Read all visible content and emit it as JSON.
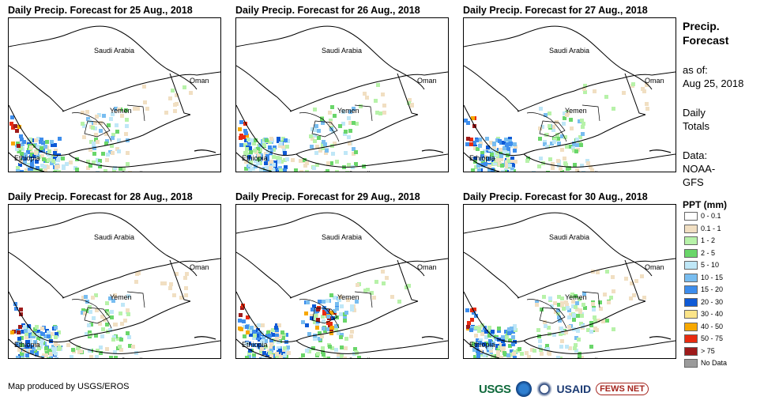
{
  "panels": [
    {
      "title": "Daily Precip. Forecast for 25 Aug., 2018"
    },
    {
      "title": "Daily Precip. Forecast for 26 Aug., 2018"
    },
    {
      "title": "Daily Precip. Forecast for 27 Aug., 2018"
    },
    {
      "title": "Daily Precip. Forecast for 28 Aug., 2018"
    },
    {
      "title": "Daily Precip. Forecast for 29 Aug., 2018"
    },
    {
      "title": "Daily Precip. Forecast for 30 Aug., 2018"
    }
  ],
  "map_labels": {
    "saudi": "Saudi Arabia",
    "oman": "Oman",
    "yemen": "Yemen",
    "ethiopia": "Ethiopia",
    "somalia": "Somalia"
  },
  "side": {
    "title_line1": "Precip.",
    "title_line2": "Forecast",
    "asof_line1": "as of:",
    "asof_line2": "Aug 25, 2018",
    "daily_line1": "Daily",
    "daily_line2": "Totals",
    "data_line1": "Data:",
    "data_line2": "NOAA-",
    "data_line3": "GFS"
  },
  "legend": {
    "title": "PPT (mm)",
    "items": [
      {
        "label": "0 - 0.1",
        "color": "#ffffff"
      },
      {
        "label": "0.1 - 1",
        "color": "#f1dfc2"
      },
      {
        "label": "1 - 2",
        "color": "#b7f2a9"
      },
      {
        "label": "2 - 5",
        "color": "#6ad66a"
      },
      {
        "label": "5 - 10",
        "color": "#bfe7f7"
      },
      {
        "label": "10 - 15",
        "color": "#78bdf0"
      },
      {
        "label": "15 - 20",
        "color": "#3d8ded"
      },
      {
        "label": "20 - 30",
        "color": "#0f5ad6"
      },
      {
        "label": "30 - 40",
        "color": "#fbe489"
      },
      {
        "label": "40 - 50",
        "color": "#f7a800"
      },
      {
        "label": "50 - 75",
        "color": "#e82b10"
      },
      {
        "label": "> 75",
        "color": "#9e1a1a"
      },
      {
        "label": "No Data",
        "color": "#9b9b9b"
      }
    ]
  },
  "credit": "Map produced by USGS/EROS",
  "logos": {
    "usgs": "USGS",
    "usaid": "USAID",
    "fews": "FEWS NET"
  }
}
